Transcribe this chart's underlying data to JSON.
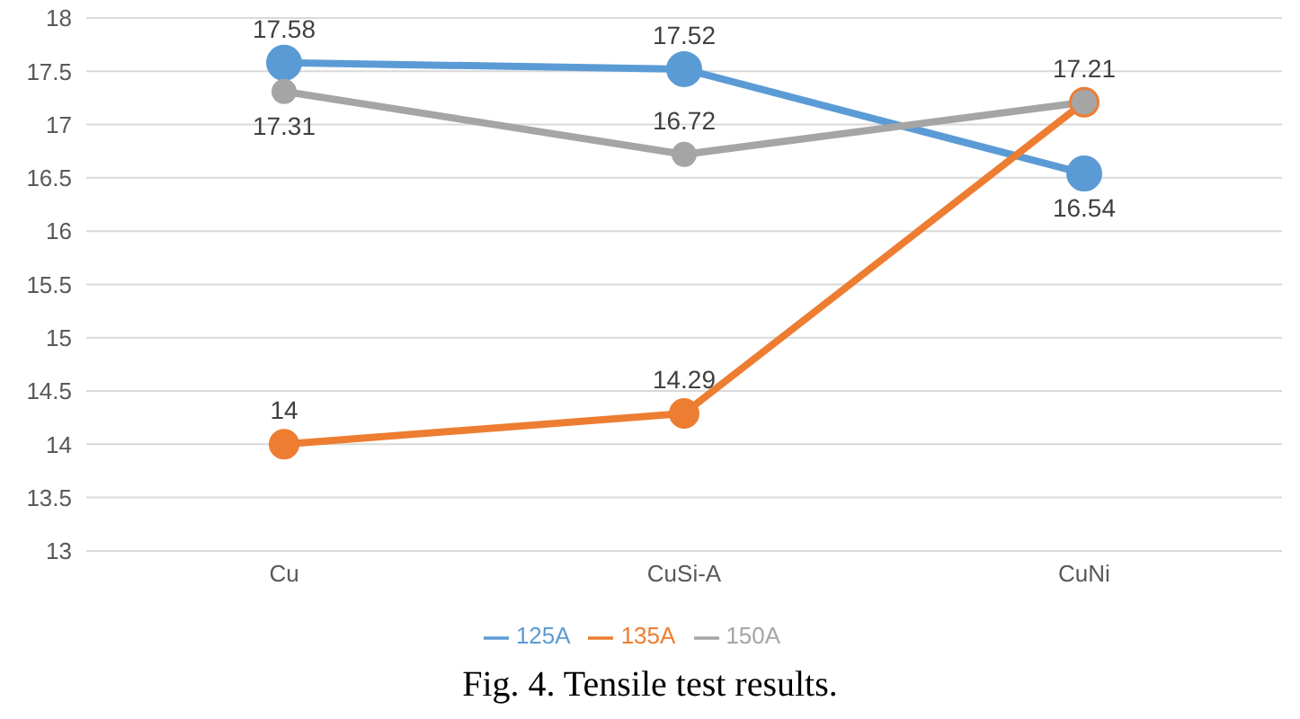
{
  "chart_data": {
    "type": "line",
    "title": "Fig. 4. Tensile test results.",
    "categories": [
      "Cu",
      "CuSi-A",
      "CuNi"
    ],
    "series": [
      {
        "name": "125A",
        "color": "#5b9bd5",
        "values": [
          17.58,
          17.52,
          16.54
        ],
        "value_labels": [
          "17.58",
          "17.52",
          "16.54"
        ]
      },
      {
        "name": "135A",
        "color": "#ed7d31",
        "values": [
          14,
          14.29,
          17.21
        ],
        "value_labels": [
          "14",
          "14.29",
          null
        ]
      },
      {
        "name": "150A",
        "color": "#a5a5a5",
        "values": [
          17.31,
          16.72,
          17.21
        ],
        "value_labels": [
          "17.31",
          "16.72",
          "17.21"
        ]
      }
    ],
    "ylim": [
      13,
      18
    ],
    "yticks": [
      13,
      13.5,
      14,
      14.5,
      15,
      15.5,
      16,
      16.5,
      17,
      17.5,
      18
    ],
    "grid": "y",
    "legend": "bottom",
    "marker": "circle",
    "line_style": "solid"
  }
}
